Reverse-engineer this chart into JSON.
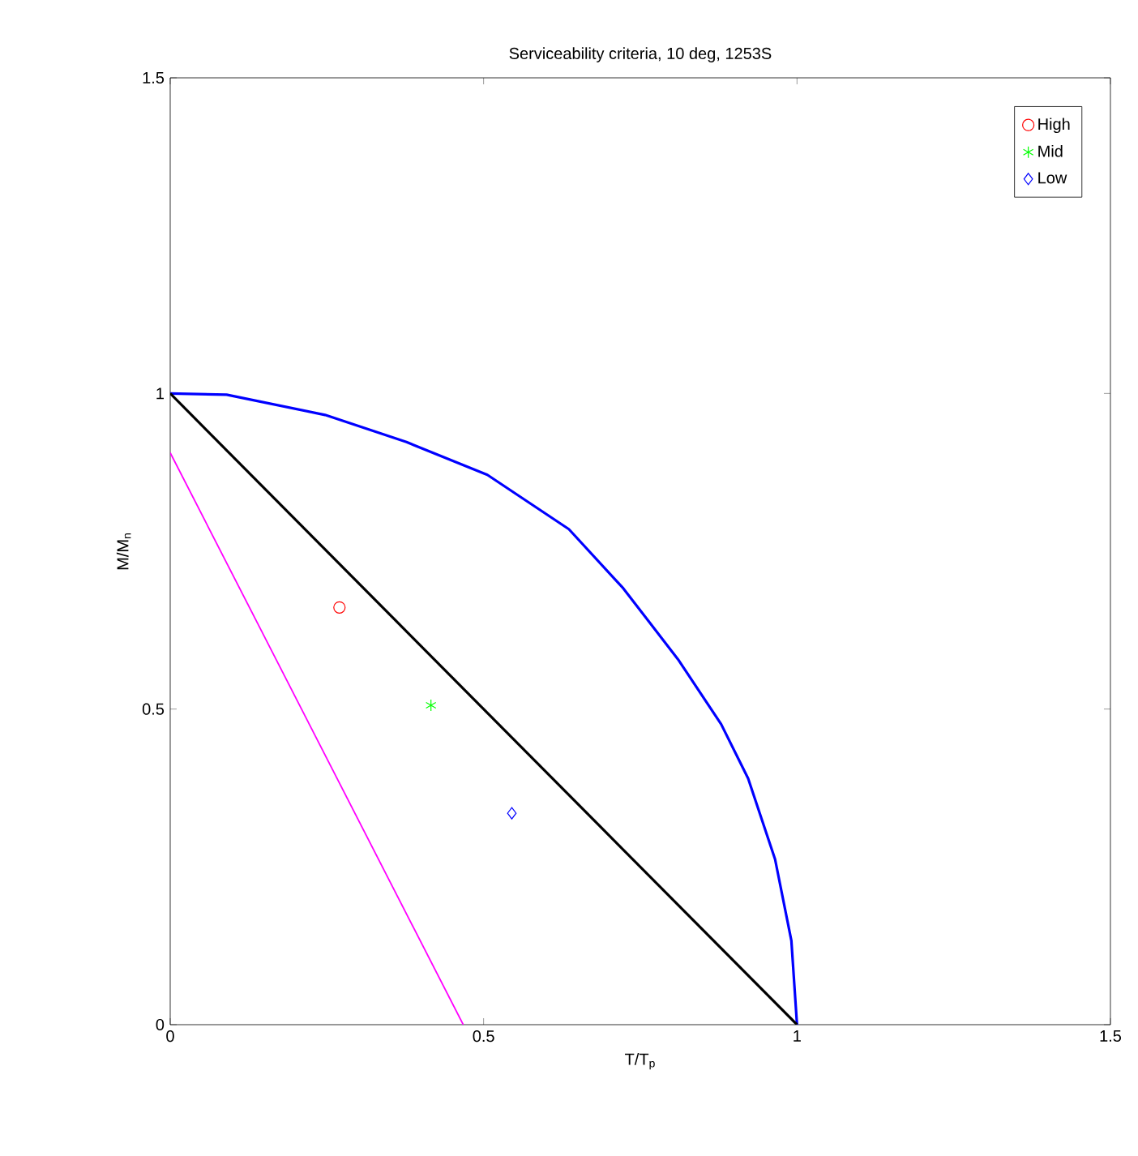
{
  "chart_data": {
    "type": "scatter",
    "title": "Serviceability criteria, 10 deg, 1253S",
    "xlabel": "T/T$_{p}$",
    "ylabel": "M/M$_{n}$",
    "xlim": [
      0,
      1.5
    ],
    "ylim": [
      0,
      1.5
    ],
    "xticks": [
      0,
      0.5,
      1,
      1.5
    ],
    "yticks": [
      0,
      0.5,
      1,
      1.5
    ],
    "legend": "top right",
    "grid": false,
    "series": [
      {
        "name": "High",
        "marker": "circle",
        "color": "#ff0000",
        "x": [
          0.27
        ],
        "values": [
          0.661
        ]
      },
      {
        "name": "Mid",
        "marker": "cross",
        "color": "#00ff00",
        "x": [
          0.416
        ],
        "values": [
          0.506
        ]
      },
      {
        "name": "Low",
        "marker": "diamond",
        "color": "#0000ff",
        "x": [
          0.545
        ],
        "values": [
          0.335
        ]
      },
      {
        "type": "line",
        "color": "#0000ff",
        "x": [
          0,
          0.09,
          0.247,
          0.377,
          0.506,
          0.636,
          0.723,
          0.81,
          0.879,
          0.922,
          0.965,
          0.991,
          1
        ],
        "values": [
          1,
          0.998,
          0.966,
          0.923,
          0.871,
          0.785,
          0.691,
          0.579,
          0.476,
          0.39,
          0.262,
          0.133,
          0
        ]
      },
      {
        "type": "line",
        "color": "#000000",
        "x": [
          0,
          1
        ],
        "values": [
          1,
          0
        ]
      },
      {
        "type": "line",
        "color": "#ff00ff",
        "x": [
          0,
          0.4675
        ],
        "values": [
          0.906,
          0
        ]
      }
    ]
  }
}
